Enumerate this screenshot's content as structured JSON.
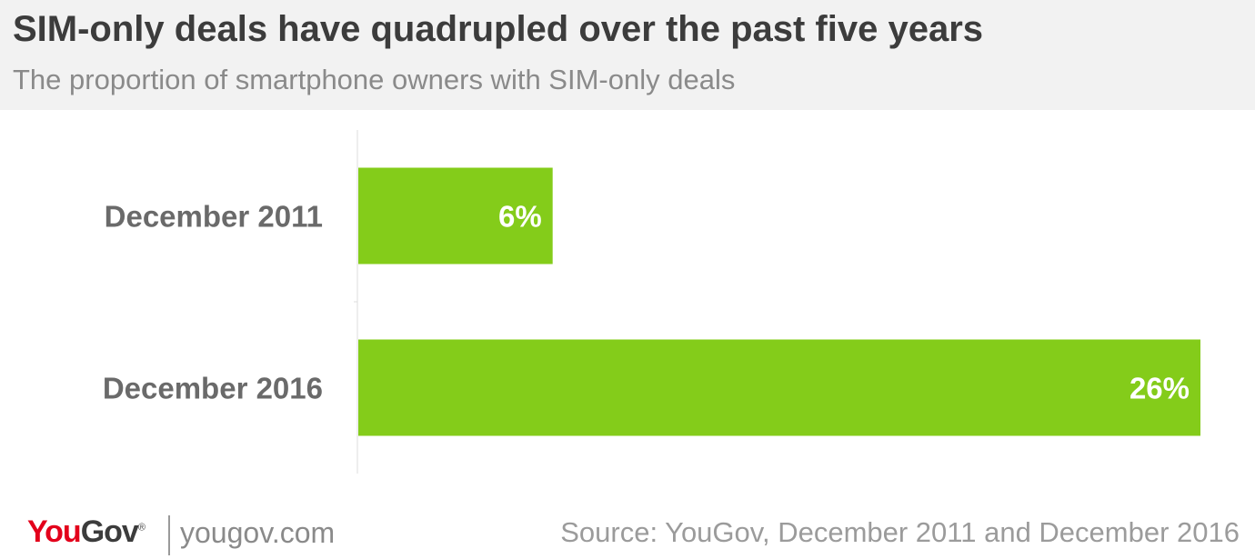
{
  "title": "SIM-only deals have quadrupled over the past five years",
  "subtitle": "The proportion of smartphone owners with SIM-only deals",
  "footer": {
    "logo_you": "You",
    "logo_gov": "Gov",
    "logo_reg": "®",
    "site": "yougov.com",
    "source": "Source: YouGov, December 2011 and December 2016"
  },
  "colors": {
    "bar": "#84cc1a",
    "bar_label": "#ffffff",
    "category_label": "#6a6a6a",
    "axis": "#dddddd"
  },
  "chart_data": {
    "type": "bar",
    "orientation": "horizontal",
    "categories": [
      "December 2011",
      "December 2016"
    ],
    "values": [
      6,
      26
    ],
    "labels": [
      "6%",
      "26%"
    ],
    "xlim": [
      0,
      26
    ],
    "grid": false
  }
}
